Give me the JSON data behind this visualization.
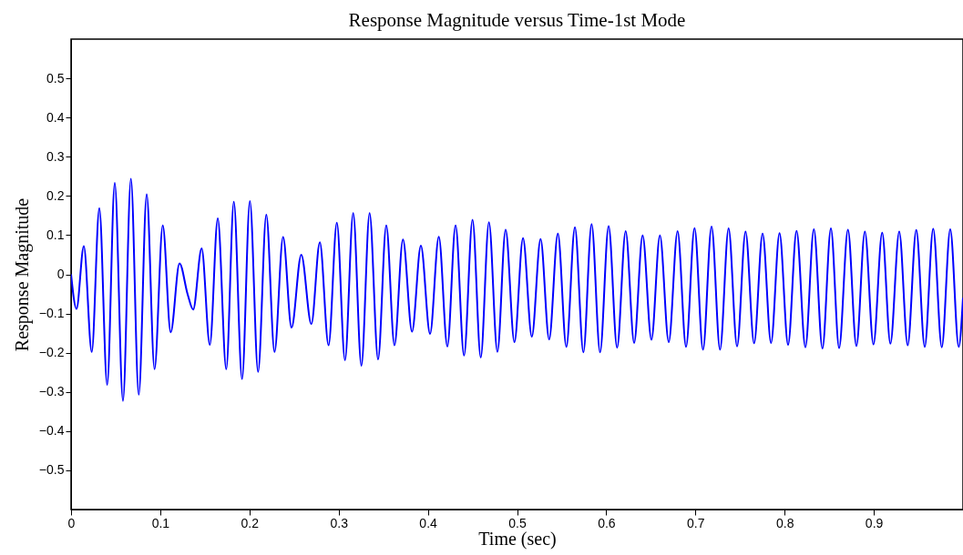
{
  "chart_data": {
    "type": "line",
    "title": "Response Magnitude versus Time-1st Mode",
    "xlabel": "Time (sec)",
    "ylabel": "Response Magnitude",
    "xlim": [
      0,
      1
    ],
    "xticks": [
      0,
      0.1,
      0.2,
      0.3,
      0.4,
      0.5,
      0.6,
      0.7,
      0.8,
      0.9
    ],
    "ylim": [
      -0.6,
      0.6
    ],
    "yticks": [
      -0.5,
      -0.4,
      -0.3,
      -0.2,
      -0.1,
      0,
      0.1,
      0.2,
      0.3,
      0.4,
      0.5
    ],
    "grid": false,
    "marker": "none",
    "line_style": "solid",
    "series": [
      {
        "color": "#0000ff",
        "x": [
          0,
          0.0061,
          0.0143,
          0.0232,
          0.0317,
          0.0405,
          0.049,
          0.0582,
          0.0671,
          0.0759,
          0.0848,
          0.0936,
          0.1028,
          0.1117,
          0.1216,
          0.1307,
          0.1369,
          0.1464,
          0.1556,
          0.1645,
          0.174,
          0.1825,
          0.1917,
          0.2005,
          0.2097,
          0.2189,
          0.2281,
          0.2377,
          0.2472,
          0.2581,
          0.2694,
          0.2789,
          0.2887,
          0.298,
          0.3071,
          0.3163,
          0.3255,
          0.3347,
          0.3442,
          0.3534,
          0.3626,
          0.3721,
          0.3823,
          0.3922,
          0.4025,
          0.4123,
          0.4219,
          0.4311,
          0.4406,
          0.4501,
          0.4593,
          0.4685,
          0.478,
          0.4872,
          0.4971,
          0.5067,
          0.5166,
          0.5264,
          0.536,
          0.5458,
          0.5553,
          0.5649,
          0.5744,
          0.5836,
          0.5931,
          0.6027,
          0.6122,
          0.6218,
          0.6313,
          0.6408,
          0.6507,
          0.6602,
          0.6701,
          0.68,
          0.6895,
          0.699,
          0.7085,
          0.7181,
          0.7276,
          0.7372,
          0.7467,
          0.7562,
          0.7658,
          0.7753,
          0.7848,
          0.7943,
          0.8039,
          0.8134,
          0.8233,
          0.8328,
          0.8424,
          0.8519,
          0.8611,
          0.871,
          0.8805,
          0.89,
          0.8996,
          0.9094,
          0.9186,
          0.9285,
          0.938,
          0.9476,
          0.9571,
          0.9666,
          0.9762,
          0.9857,
          0.9952,
          1.0
        ],
        "values": [
          0,
          -0.088,
          0.072,
          -0.198,
          0.169,
          -0.282,
          0.233,
          -0.323,
          0.244,
          -0.307,
          0.204,
          -0.242,
          0.125,
          -0.148,
          0.028,
          -0.051,
          -0.09,
          0.066,
          -0.18,
          0.143,
          -0.242,
          0.185,
          -0.267,
          0.187,
          -0.249,
          0.152,
          -0.198,
          0.095,
          -0.136,
          0.05,
          -0.127,
          0.082,
          -0.181,
          0.132,
          -0.219,
          0.156,
          -0.233,
          0.156,
          -0.217,
          0.125,
          -0.181,
          0.089,
          -0.146,
          0.073,
          -0.152,
          0.096,
          -0.184,
          0.125,
          -0.207,
          0.139,
          -0.212,
          0.133,
          -0.198,
          0.114,
          -0.173,
          0.092,
          -0.159,
          0.09,
          -0.166,
          0.104,
          -0.185,
          0.12,
          -0.199,
          0.128,
          -0.199,
          0.123,
          -0.187,
          0.11,
          -0.175,
          0.099,
          -0.167,
          0.099,
          -0.173,
          0.11,
          -0.185,
          0.118,
          -0.192,
          0.122,
          -0.192,
          0.117,
          -0.184,
          0.109,
          -0.176,
          0.104,
          -0.175,
          0.105,
          -0.18,
          0.111,
          -0.186,
          0.115,
          -0.189,
          0.117,
          -0.188,
          0.114,
          -0.183,
          0.109,
          -0.179,
          0.106,
          -0.177,
          0.109,
          -0.181,
          0.113,
          -0.185,
          0.116,
          -0.186,
          0.115,
          -0.185,
          -0.06
        ]
      }
    ]
  }
}
